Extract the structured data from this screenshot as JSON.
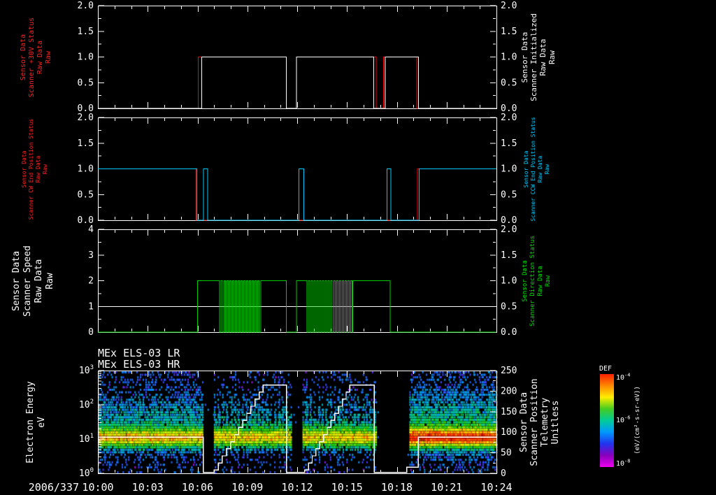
{
  "titles": {
    "line1": "MEx ELS-03 LR",
    "line2": "MEx ELS-03 HR"
  },
  "x_axis": {
    "date_label": "2006/337",
    "tick_labels": [
      "10:00",
      "10:03",
      "10:06",
      "10:09",
      "10:12",
      "10:15",
      "10:18",
      "10:21",
      "10:24"
    ],
    "start_min": 0,
    "end_min": 24,
    "major_every_min": 3,
    "minor_every_min": 1
  },
  "chart_data": [
    {
      "id": "panel-scanner-status",
      "type": "line",
      "left_axis": {
        "range": [
          0,
          2
        ],
        "ticks": [
          0,
          0.5,
          1,
          1.5,
          2
        ],
        "tick_labels": [
          "0.0",
          "0.5",
          "1.0",
          "1.5",
          "2.0"
        ],
        "minor": 0.25
      },
      "right_axis": {
        "range": [
          0,
          2
        ],
        "ticks": [
          0,
          0.5,
          1,
          1.5,
          2
        ],
        "tick_labels": [
          "0.0",
          "0.5",
          "1.0",
          "1.5",
          "2.0"
        ],
        "minor": 0.25
      },
      "left_title": {
        "color": "#ff2222",
        "lines": [
          "Sensor Data",
          "Scanner +30V Status",
          "Raw Data",
          "Raw"
        ]
      },
      "right_title": {
        "color": "#ffffff",
        "lines": [
          "Sensor Data",
          "Scanner Initialized",
          "Raw Data",
          "Raw"
        ]
      },
      "series": [
        {
          "name": "scanner-plus30v-status",
          "color": "#ff0000",
          "steps": [
            [
              0,
              0
            ],
            [
              6.05,
              1
            ],
            [
              11.35,
              0
            ],
            [
              11.95,
              1
            ],
            [
              16.75,
              0
            ],
            [
              17.2,
              1
            ],
            [
              19.2,
              0
            ]
          ]
        },
        {
          "name": "scanner-initialized",
          "color": "#ffffff",
          "steps": [
            [
              0,
              0
            ],
            [
              6.25,
              1
            ],
            [
              11.35,
              0
            ],
            [
              11.95,
              1
            ],
            [
              16.6,
              0
            ],
            [
              17.3,
              1
            ],
            [
              19.3,
              0
            ]
          ]
        }
      ]
    },
    {
      "id": "panel-end-position",
      "type": "line",
      "left_axis": {
        "range": [
          0,
          2
        ],
        "ticks": [
          0,
          0.5,
          1,
          1.5,
          2
        ],
        "tick_labels": [
          "0.0",
          "0.5",
          "1.0",
          "1.5",
          "2.0"
        ],
        "minor": 0.25
      },
      "right_axis": {
        "range": [
          0,
          2
        ],
        "ticks": [
          0,
          0.5,
          1,
          1.5,
          2
        ],
        "tick_labels": [
          "0.0",
          "0.5",
          "1.0",
          "1.5",
          "2.0"
        ],
        "minor": 0.25
      },
      "left_title": {
        "color": "#ff2222",
        "lines": [
          "Sensor Data",
          "Scanner CW End Position Status",
          "Raw Data",
          "Raw"
        ]
      },
      "right_title": {
        "color": "#00ccff",
        "lines": [
          "Sensor Data",
          "Scanner CCW End Position Status",
          "Raw Data",
          "Raw"
        ]
      },
      "series": [
        {
          "name": "scanner-cw-end-position",
          "color": "#ff0000",
          "steps": [
            [
              0,
              1
            ],
            [
              5.9,
              0
            ],
            [
              19.25,
              1
            ]
          ]
        },
        {
          "name": "scanner-ccw-end-position",
          "color": "#00ccff",
          "steps": [
            [
              0,
              1
            ],
            [
              5.95,
              0
            ],
            [
              6.35,
              1
            ],
            [
              6.6,
              0
            ],
            [
              12.1,
              1
            ],
            [
              12.4,
              0
            ],
            [
              17.4,
              1
            ],
            [
              17.65,
              0
            ],
            [
              19.35,
              1
            ]
          ]
        }
      ]
    },
    {
      "id": "panel-scanner-speed",
      "type": "line",
      "left_axis": {
        "range": [
          0,
          4
        ],
        "ticks": [
          0,
          1,
          2,
          3,
          4
        ],
        "tick_labels": [
          "0",
          "1",
          "2",
          "3",
          "4"
        ],
        "minor": 0.5
      },
      "right_axis": {
        "range": [
          0,
          2
        ],
        "ticks": [
          0,
          0.5,
          1,
          1.5,
          2
        ],
        "tick_labels": [
          "0.0",
          "0.5",
          "1.0",
          "1.5",
          "2.0"
        ],
        "minor": 0.25
      },
      "left_title": {
        "color": "#ffffff",
        "lines": [
          "Sensor Data",
          "Scanner Speed",
          "Raw Data",
          "Raw"
        ]
      },
      "right_title": {
        "color": "#00dd00",
        "lines": [
          "Sensor Data",
          "Scanner Direction Status",
          "Raw Data",
          "Raw"
        ]
      },
      "series": [
        {
          "name": "scanner-speed",
          "color": "#ffffff",
          "steps": [
            [
              0,
              1
            ]
          ]
        },
        {
          "name": "scanner-direction-status",
          "color": "#00cc00",
          "steps": [
            [
              0,
              0
            ],
            [
              6.0,
              2
            ],
            {
              "osc": [
                7.25,
                9.8,
                0,
                2,
                0.17
              ]
            },
            [
              9.8,
              2
            ],
            [
              11.35,
              0
            ],
            [
              11.95,
              2
            ],
            {
              "osc": [
                12.5,
                15.35,
                0,
                2,
                0.17
              ]
            },
            [
              15.35,
              2
            ],
            [
              17.6,
              0
            ]
          ]
        }
      ]
    },
    {
      "id": "panel-spectrogram",
      "type": "heatmap",
      "x_range_minutes": [
        0,
        24
      ],
      "energy_range_eV": [
        1,
        1000
      ],
      "left_axis": {
        "log": true,
        "tick_exponents": [
          "0",
          "1",
          "2",
          "3"
        ]
      },
      "right_axis": {
        "range": [
          0,
          250
        ],
        "ticks": [
          0,
          50,
          100,
          150,
          200,
          250
        ],
        "tick_labels": [
          "0",
          "50",
          "100",
          "150",
          "200",
          "250"
        ],
        "minor": 25
      },
      "left_title": {
        "color": "#ffffff",
        "lines": [
          "Electron Energy",
          "eV"
        ]
      },
      "right_title": {
        "color": "#ffffff",
        "lines": [
          "Sensor Data",
          "Scanner Position",
          "Telemetry",
          "Unitless"
        ]
      },
      "bands": [
        [
          0,
          6.3
        ],
        [
          6.95,
          11.65
        ],
        [
          12.3,
          16.75
        ],
        [
          18.7,
          24
        ]
      ],
      "band_intensity": [
        0.82,
        0.78,
        0.78,
        1.02
      ],
      "band_striped": [
        false,
        true,
        true,
        false
      ],
      "overlay": {
        "name": "scanner-position",
        "color": "#ffffff",
        "steps": [
          [
            0,
            88
          ],
          [
            6.35,
            2
          ],
          {
            "stair": [
              7.0,
              10.2,
              8,
              215,
              13
            ]
          },
          [
            10.2,
            215
          ],
          [
            11.35,
            2
          ],
          {
            "stair": [
              12.45,
              15.4,
              8,
              215,
              13
            ]
          },
          [
            15.4,
            215
          ],
          [
            16.65,
            2
          ],
          [
            18.6,
            15
          ],
          [
            19.3,
            88
          ]
        ]
      },
      "colorbar": {
        "title": "DEF",
        "tick_main": "10",
        "tick_exponents": [
          "-4",
          "-6",
          "-8"
        ],
        "units": "(eV/(cm²-s-sr-eV))",
        "stops": [
          "#ff2000",
          "#ff8800",
          "#ffee00",
          "#44cc22",
          "#00cc99",
          "#0099ff",
          "#2233ee",
          "#8800bb",
          "#ee00ee"
        ]
      }
    }
  ]
}
